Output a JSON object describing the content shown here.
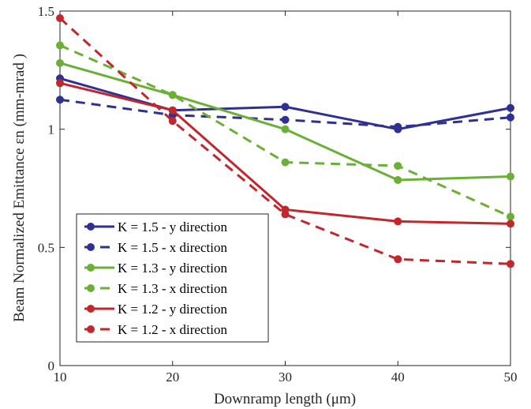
{
  "chart_data": {
    "type": "line",
    "xlabel": "Downramp  length  (μm)",
    "ylabel": "Beam  Normalized  Emittance  εn (mm-mrad )",
    "xlim": [
      10,
      50
    ],
    "ylim": [
      0,
      1.5
    ],
    "x_ticks": [
      "10",
      "20",
      "30",
      "40",
      "50"
    ],
    "y_ticks": [
      "0",
      "0.5",
      "1",
      "1.5"
    ],
    "grid": false,
    "legend_position": "bottom-left",
    "x": [
      10,
      20,
      30,
      40,
      50
    ],
    "series": [
      {
        "name": "K  = 1.5 - y  direction",
        "color": "#2e3192",
        "dash": "solid",
        "values": [
          1.215,
          1.08,
          1.095,
          1.0,
          1.09
        ]
      },
      {
        "name": "K  = 1.5 - x  direction",
        "color": "#2e3192",
        "dash": "dashed",
        "values": [
          1.125,
          1.06,
          1.04,
          1.01,
          1.05
        ]
      },
      {
        "name": "K  = 1.3 - y  direction",
        "color": "#6ab035",
        "dash": "solid",
        "values": [
          1.28,
          1.145,
          1.0,
          0.785,
          0.8
        ]
      },
      {
        "name": "K  = 1.3 - x  direction",
        "color": "#6ab035",
        "dash": "dashed",
        "values": [
          1.355,
          1.145,
          0.86,
          0.845,
          0.63
        ]
      },
      {
        "name": "K  = 1.2 - y  direction",
        "color": "#c1272d",
        "dash": "solid",
        "values": [
          1.195,
          1.08,
          0.66,
          0.61,
          0.6
        ]
      },
      {
        "name": "K  = 1.2 - x  direction",
        "color": "#c1272d",
        "dash": "dashed",
        "values": [
          1.47,
          1.035,
          0.64,
          0.45,
          0.43
        ]
      }
    ]
  }
}
